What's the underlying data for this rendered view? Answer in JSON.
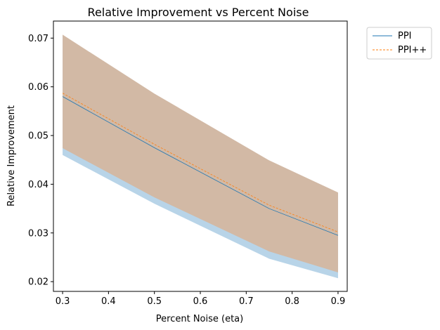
{
  "chart_data": {
    "type": "line",
    "title": "Relative Improvement vs Percent Noise",
    "xlabel": "Percent Noise (eta)",
    "ylabel": "Relative Improvement",
    "xlim": [
      0.28,
      0.92
    ],
    "ylim": [
      0.018,
      0.0735
    ],
    "xticks": [
      0.3,
      0.4,
      0.5,
      0.6,
      0.7,
      0.8,
      0.9
    ],
    "xtick_labels": [
      "0.3",
      "0.4",
      "0.5",
      "0.6",
      "0.7",
      "0.8",
      "0.9"
    ],
    "yticks": [
      0.02,
      0.03,
      0.04,
      0.05,
      0.06,
      0.07
    ],
    "ytick_labels": [
      "0.02",
      "0.03",
      "0.04",
      "0.05",
      "0.06",
      "0.07"
    ],
    "x": [
      0.3,
      0.5,
      0.75,
      0.9
    ],
    "series": [
      {
        "name": "PPI",
        "values": [
          0.058,
          0.0475,
          0.035,
          0.0295
        ],
        "lower": [
          0.046,
          0.036,
          0.0247,
          0.0207
        ],
        "upper": [
          0.0705,
          0.0585,
          0.0448,
          0.0382
        ],
        "color": "#1f77b4",
        "band_color": "#b8d4e8",
        "line_style": "solid"
      },
      {
        "name": "PPI++",
        "values": [
          0.0587,
          0.0482,
          0.0357,
          0.0302
        ],
        "lower": [
          0.0474,
          0.0373,
          0.0262,
          0.0219
        ],
        "upper": [
          0.0707,
          0.0586,
          0.0449,
          0.0383
        ],
        "color": "#ff7f0e",
        "band_color": "#d2b9a5",
        "line_style": "dashed"
      }
    ],
    "legend_position": "outside-top-right",
    "grid": false
  }
}
